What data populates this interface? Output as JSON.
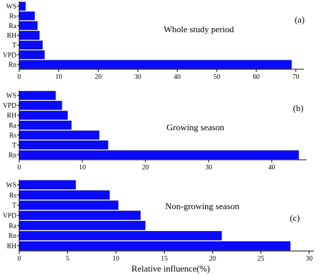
{
  "chart_data": [
    {
      "type": "bar",
      "orientation": "horizontal",
      "panel_label": "(a)",
      "annotation": "Whole study period",
      "categories": [
        "WS",
        "Rs",
        "Ra",
        "RH",
        "T",
        "VPD",
        "Rn"
      ],
      "values": [
        1.5,
        3.8,
        4.5,
        5.0,
        5.8,
        6.3,
        68.8
      ],
      "xlim": [
        0,
        72
      ],
      "xticks": [
        0,
        10,
        20,
        30,
        40,
        50,
        60,
        70
      ],
      "bar_color": "#0a0aff"
    },
    {
      "type": "bar",
      "orientation": "horizontal",
      "panel_label": "(b)",
      "annotation": "Growing season",
      "categories": [
        "WS",
        "VPD",
        "RH",
        "Ra",
        "Rs",
        "T",
        "Rn"
      ],
      "values": [
        5.7,
        6.7,
        7.6,
        8.2,
        12.6,
        14.0,
        44.2
      ],
      "xlim": [
        0,
        45.5
      ],
      "xticks": [
        0,
        10,
        20,
        30,
        40
      ],
      "bar_color": "#0a0aff"
    },
    {
      "type": "bar",
      "orientation": "horizontal",
      "panel_label": "(c)",
      "annotation": "Non-growing season",
      "categories": [
        "WS",
        "Rs",
        "T",
        "VPD",
        "Ra",
        "Rn",
        "RH"
      ],
      "values": [
        5.8,
        9.3,
        10.2,
        12.5,
        13.0,
        20.9,
        28.0
      ],
      "xlim": [
        0,
        30.5
      ],
      "xticks": [
        0,
        5,
        10,
        15,
        20,
        25,
        30
      ],
      "bar_color": "#0a0aff"
    }
  ],
  "xlabel": "Relative influence(%)"
}
